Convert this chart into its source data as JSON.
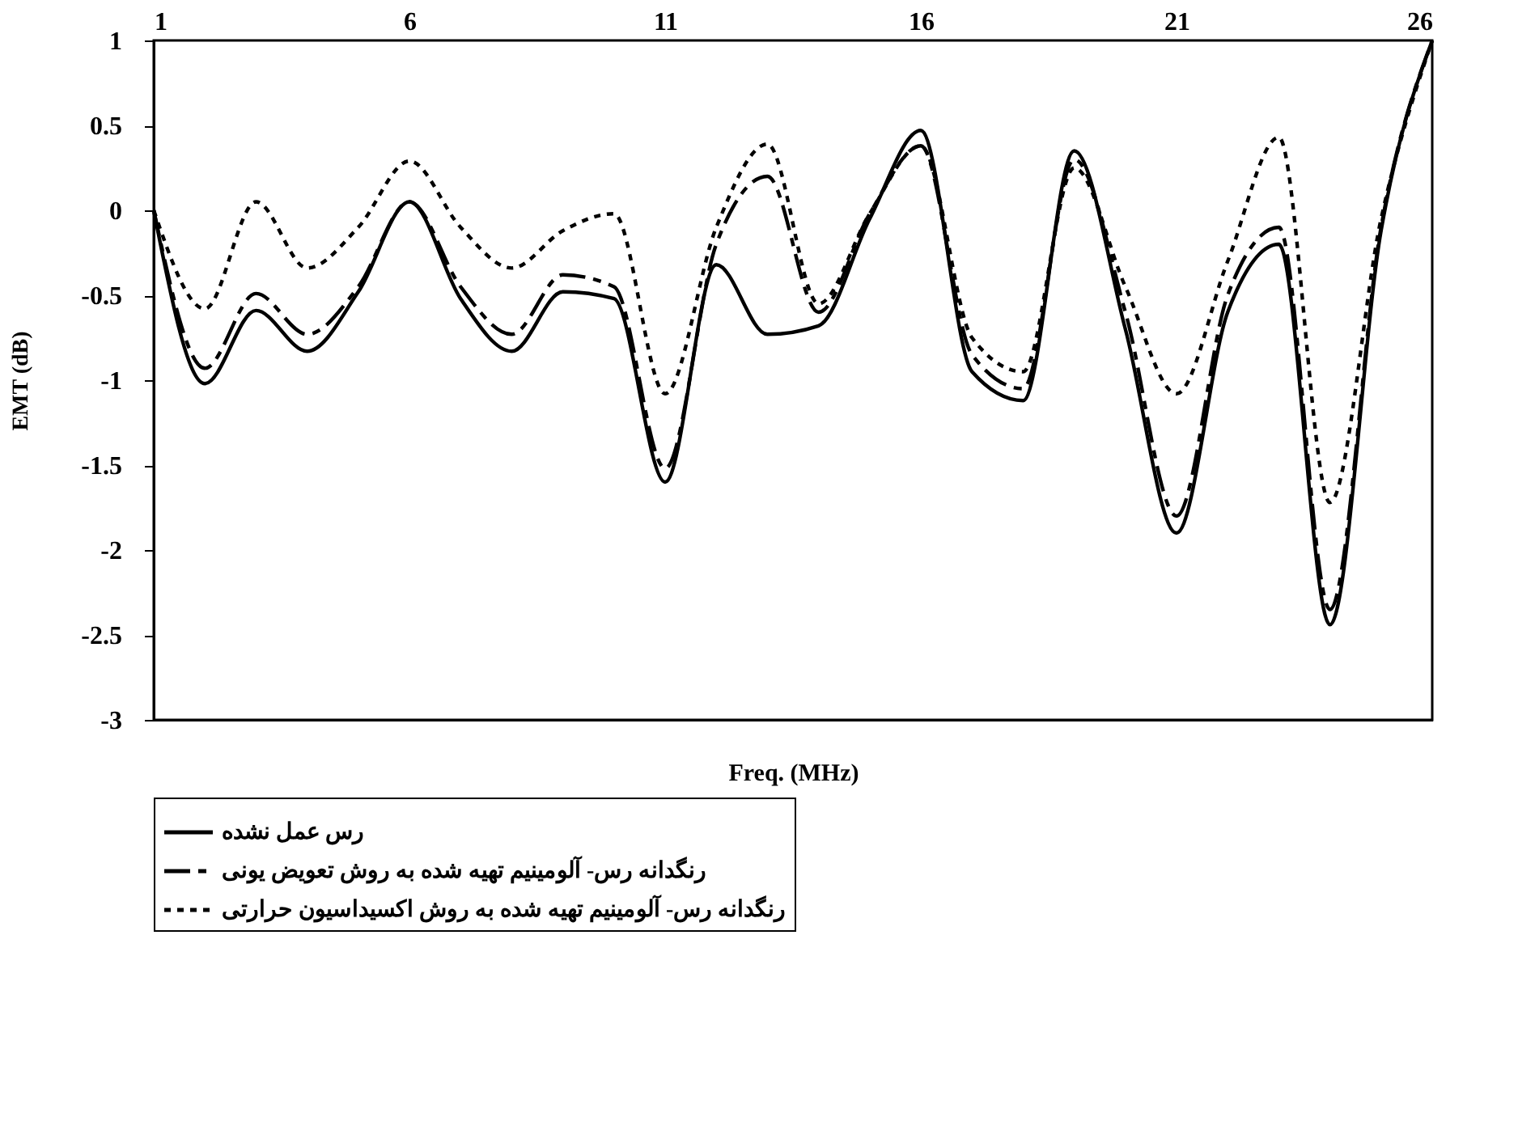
{
  "chart_data": {
    "type": "line",
    "xlabel": "Freq. (MHz)",
    "ylabel": "EMT (dB)",
    "x": [
      1,
      2,
      3,
      4,
      5,
      6,
      7,
      8,
      9,
      10,
      11,
      12,
      13,
      14,
      15,
      16,
      17,
      18,
      19,
      20,
      21,
      22,
      23,
      24,
      25,
      26
    ],
    "xlim": [
      1,
      26
    ],
    "xticks": [
      1,
      6,
      11,
      16,
      21,
      26
    ],
    "ylim": [
      -3,
      1
    ],
    "yticks": [
      -3,
      -2.5,
      -2,
      -1.5,
      -1,
      -0.5,
      0,
      0.5,
      1
    ],
    "grid": false,
    "legend": "bottom",
    "marker": "none",
    "series": [
      {
        "name": "رس عمل نشده",
        "color": "#000000",
        "line_style": "solid",
        "values": [
          0,
          -1.02,
          -0.59,
          -0.83,
          -0.48,
          0.05,
          -0.52,
          -0.83,
          -0.48,
          -0.52,
          -1.6,
          -0.32,
          -0.73,
          -0.68,
          -0.05,
          0.47,
          -0.95,
          -1.12,
          0.35,
          -0.7,
          -1.9,
          -0.6,
          -0.2,
          -2.44,
          -0.12,
          1
        ]
      },
      {
        "name": "رنگدانه رس- آلومینیم تهیه شده به روش تعویض یونی",
        "color": "#000000",
        "line_style": "dashed",
        "values": [
          0,
          -0.93,
          -0.49,
          -0.73,
          -0.45,
          0.05,
          -0.45,
          -0.73,
          -0.38,
          -0.45,
          -1.52,
          -0.2,
          0.2,
          -0.6,
          -0.02,
          0.38,
          -0.85,
          -1.05,
          0.3,
          -0.6,
          -1.8,
          -0.5,
          -0.1,
          -2.35,
          -0.1,
          1
        ]
      },
      {
        "name": "رنگدانه رس- آلومینیم تهیه شده به روش اکسیداسیون حرارتی",
        "color": "#000000",
        "line_style": "dotted",
        "values": [
          0,
          -0.58,
          0.05,
          -0.34,
          -0.1,
          0.29,
          -0.1,
          -0.34,
          -0.12,
          -0.02,
          -1.08,
          -0.1,
          0.39,
          -0.55,
          -0.02,
          0.38,
          -0.75,
          -0.95,
          0.25,
          -0.45,
          -1.08,
          -0.3,
          0.43,
          -1.72,
          -0.05,
          1
        ]
      }
    ]
  }
}
